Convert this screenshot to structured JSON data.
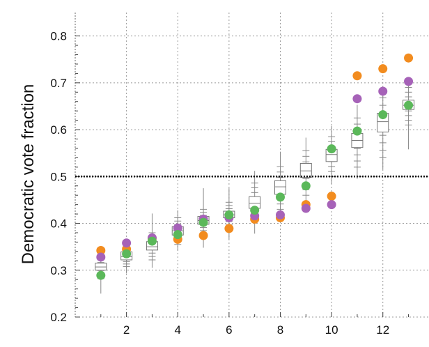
{
  "chart_data": {
    "type": "scatter",
    "title": "",
    "ylabel": "Democratic vote fraction",
    "xlabel": "",
    "xlim": [
      0,
      13.8
    ],
    "ylim": [
      0.2,
      0.85
    ],
    "x_ticks": [
      2,
      4,
      6,
      8,
      10,
      12
    ],
    "y_ticks": [
      0.2,
      0.3,
      0.4,
      0.5,
      0.6,
      0.7,
      0.8
    ],
    "grid": true,
    "reference_line": {
      "y": 0.5,
      "style": "dotted",
      "color": "#000000"
    },
    "boxplots": [
      {
        "x": 1,
        "q1": 0.3,
        "median": 0.307,
        "q3": 0.315,
        "whisker_low": 0.282,
        "whisker_high": 0.328,
        "min": 0.25,
        "max": 0.34
      },
      {
        "x": 2,
        "q1": 0.322,
        "median": 0.329,
        "q3": 0.339,
        "whisker_low": 0.308,
        "whisker_high": 0.35,
        "min": 0.293,
        "max": 0.362
      },
      {
        "x": 3,
        "q1": 0.343,
        "median": 0.35,
        "q3": 0.361,
        "whisker_low": 0.322,
        "whisker_high": 0.38,
        "min": 0.305,
        "max": 0.421
      },
      {
        "x": 4,
        "q1": 0.375,
        "median": 0.384,
        "q3": 0.393,
        "whisker_low": 0.355,
        "whisker_high": 0.412,
        "min": 0.342,
        "max": 0.428
      },
      {
        "x": 5,
        "q1": 0.398,
        "median": 0.406,
        "q3": 0.415,
        "whisker_low": 0.378,
        "whisker_high": 0.43,
        "min": 0.348,
        "max": 0.475
      },
      {
        "x": 6,
        "q1": 0.412,
        "median": 0.418,
        "q3": 0.426,
        "whisker_low": 0.39,
        "whisker_high": 0.445,
        "min": 0.366,
        "max": 0.475
      },
      {
        "x": 7,
        "q1": 0.432,
        "median": 0.443,
        "q3": 0.457,
        "whisker_low": 0.405,
        "whisker_high": 0.486,
        "min": 0.378,
        "max": 0.512
      },
      {
        "x": 8,
        "q1": 0.462,
        "median": 0.478,
        "q3": 0.491,
        "whisker_low": 0.43,
        "whisker_high": 0.521,
        "min": 0.418,
        "max": 0.553
      },
      {
        "x": 9,
        "q1": 0.498,
        "median": 0.512,
        "q3": 0.528,
        "whisker_low": 0.46,
        "whisker_high": 0.555,
        "min": 0.44,
        "max": 0.583
      },
      {
        "x": 10,
        "q1": 0.532,
        "median": 0.547,
        "q3": 0.558,
        "whisker_low": 0.5,
        "whisker_high": 0.585,
        "min": 0.484,
        "max": 0.608
      },
      {
        "x": 11,
        "q1": 0.562,
        "median": 0.577,
        "q3": 0.592,
        "whisker_low": 0.52,
        "whisker_high": 0.625,
        "min": 0.495,
        "max": 0.653
      },
      {
        "x": 12,
        "q1": 0.595,
        "median": 0.617,
        "q3": 0.635,
        "whisker_low": 0.54,
        "whisker_high": 0.668,
        "min": 0.515,
        "max": 0.682
      },
      {
        "x": 13,
        "q1": 0.643,
        "median": 0.652,
        "q3": 0.663,
        "whisker_low": 0.61,
        "whisker_high": 0.69,
        "min": 0.558,
        "max": 0.7
      }
    ],
    "series": [
      {
        "color": "#f28c1f",
        "values": [
          0.342,
          0.345,
          0.368,
          0.366,
          0.374,
          0.389,
          0.409,
          0.412,
          0.44,
          0.458,
          0.715,
          0.73,
          0.753
        ]
      },
      {
        "color": "#a662b8",
        "values": [
          0.328,
          0.358,
          0.369,
          0.39,
          0.409,
          0.412,
          0.416,
          0.418,
          0.432,
          0.44,
          0.666,
          0.682,
          0.703
        ]
      },
      {
        "color": "#5bb85a",
        "values": [
          0.289,
          0.335,
          0.362,
          0.376,
          0.402,
          0.418,
          0.428,
          0.456,
          0.48,
          0.559,
          0.597,
          0.632,
          0.652
        ]
      }
    ],
    "x": [
      1,
      2,
      3,
      4,
      5,
      6,
      7,
      8,
      9,
      10,
      11,
      12,
      13
    ]
  }
}
